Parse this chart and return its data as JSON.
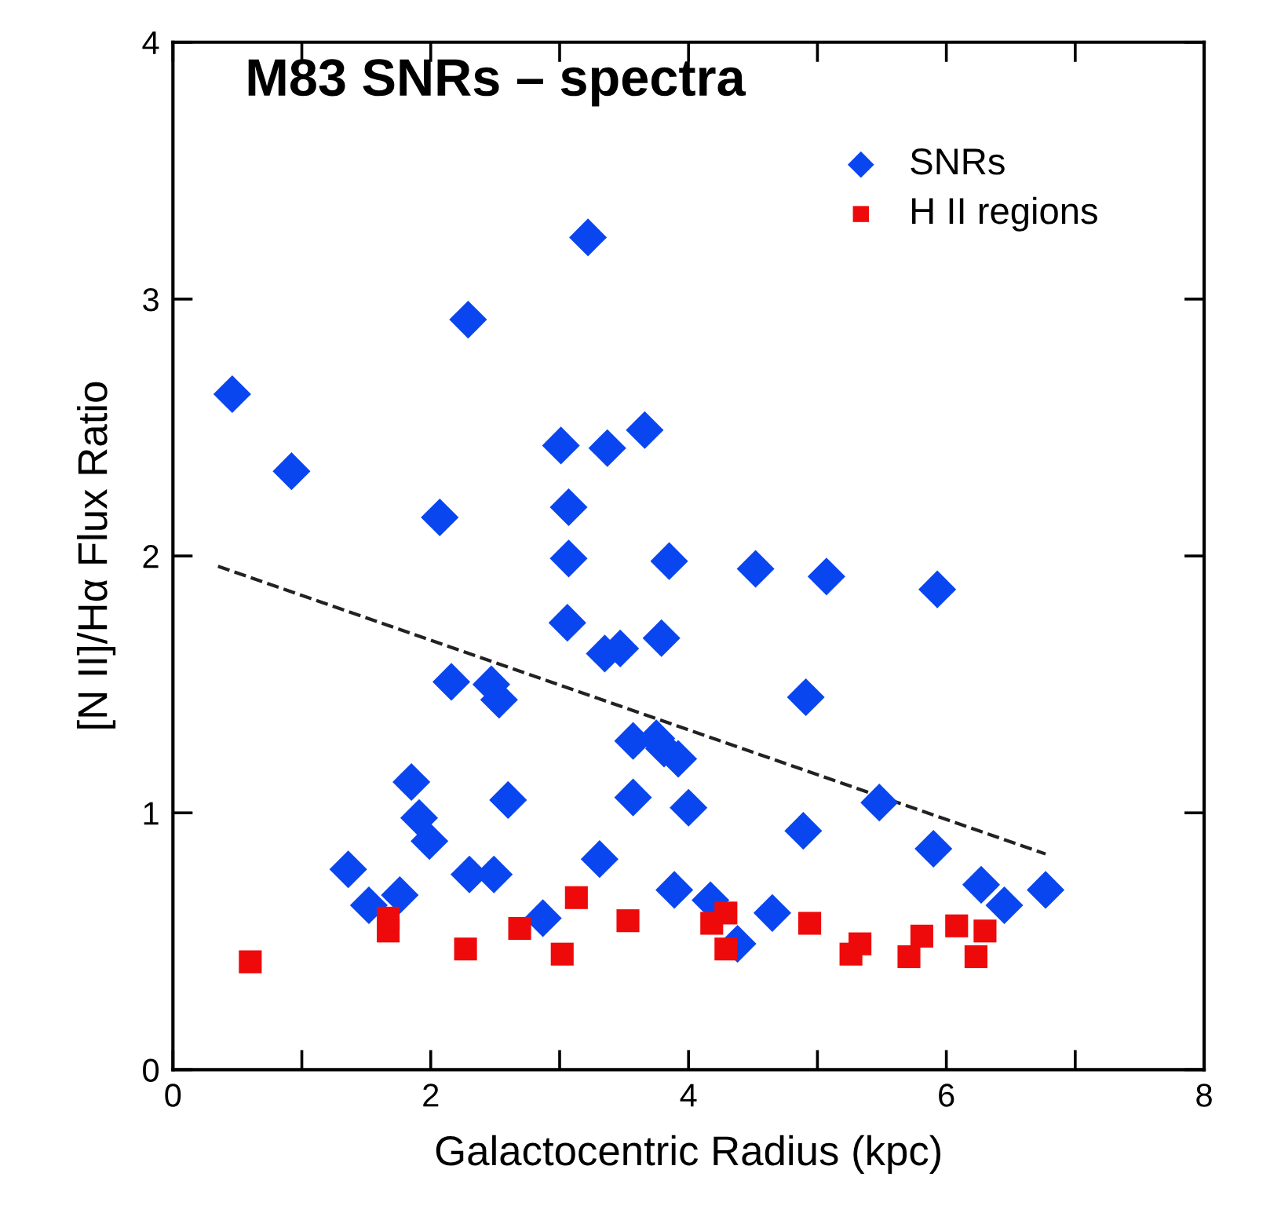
{
  "chart_data": {
    "type": "scatter",
    "title": "M83 SNRs – spectra",
    "xlabel": "Galactocentric Radius (kpc)",
    "ylabel": "[N II]/Hα Flux Ratio",
    "xlim": [
      0,
      8
    ],
    "ylim": [
      0,
      4
    ],
    "xticks": [
      0,
      {
        "value": 1,
        "label": null
      },
      2,
      {
        "value": 3,
        "label": null
      },
      4,
      {
        "value": 5,
        "label": null
      },
      6,
      {
        "value": 7,
        "label": null
      },
      8
    ],
    "yticks": [
      0,
      1,
      2,
      3,
      4
    ],
    "grid": false,
    "legend": "top right",
    "series": [
      {
        "name": "SNRs",
        "color": "#0a46f0",
        "marker": "diamond",
        "x": [
          3.22,
          2.29,
          0.46,
          0.92,
          3.66,
          3.01,
          3.37,
          2.07,
          3.07,
          3.07,
          3.85,
          3.06,
          3.35,
          3.47,
          3.79,
          2.16,
          2.47,
          2.53,
          4.52,
          5.07,
          5.93,
          3.57,
          3.75,
          3.81,
          3.92,
          1.85,
          2.6,
          3.57,
          4.0,
          1.91,
          1.99,
          1.36,
          3.31,
          2.3,
          2.49,
          1.52,
          1.76,
          2.87,
          3.89,
          4.91,
          5.48,
          4.89,
          5.9,
          4.17,
          4.38,
          4.65,
          6.27,
          6.45,
          6.77
        ],
        "values": [
          3.24,
          2.92,
          2.63,
          2.33,
          2.49,
          2.43,
          2.42,
          2.15,
          2.19,
          1.99,
          1.98,
          1.74,
          1.62,
          1.64,
          1.68,
          1.51,
          1.5,
          1.44,
          1.95,
          1.92,
          1.87,
          1.28,
          1.29,
          1.25,
          1.21,
          1.12,
          1.05,
          1.06,
          1.02,
          0.98,
          0.89,
          0.78,
          0.82,
          0.76,
          0.76,
          0.64,
          0.68,
          0.59,
          0.7,
          1.45,
          1.04,
          0.93,
          0.86,
          0.66,
          0.49,
          0.61,
          0.72,
          0.64,
          0.7
        ]
      },
      {
        "name": "H II regions",
        "color": "#ee0a0a",
        "marker": "square",
        "x": [
          0.6,
          1.67,
          1.67,
          2.27,
          2.69,
          3.02,
          3.13,
          3.53,
          4.18,
          4.29,
          4.29,
          4.94,
          5.26,
          5.33,
          5.71,
          5.81,
          6.08,
          6.23,
          6.3
        ],
        "values": [
          0.42,
          0.59,
          0.54,
          0.47,
          0.55,
          0.45,
          0.67,
          0.58,
          0.57,
          0.61,
          0.47,
          0.57,
          0.45,
          0.49,
          0.44,
          0.52,
          0.56,
          0.44,
          0.54
        ]
      },
      {
        "type": "line",
        "color": "#222222",
        "marker": "none",
        "line_style": "dashed",
        "x": [
          0.35,
          6.77
        ],
        "values": [
          1.96,
          0.84
        ]
      }
    ]
  }
}
